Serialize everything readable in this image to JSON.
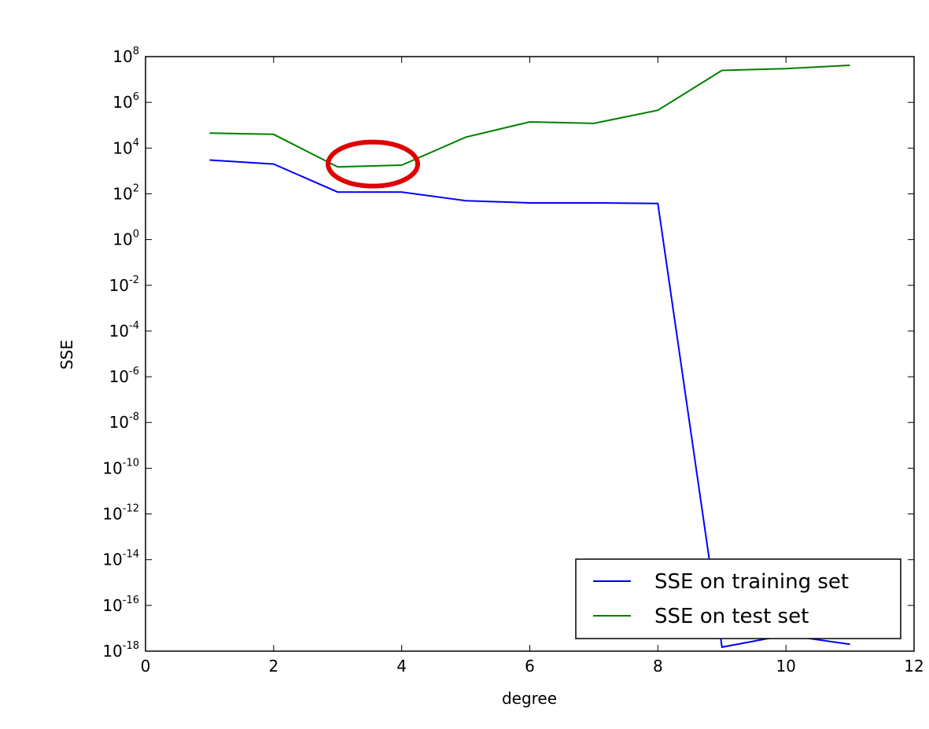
{
  "chart_data": {
    "type": "line",
    "title": "",
    "xlabel": "degree",
    "ylabel": "SSE",
    "xlim": [
      0,
      12
    ],
    "ylim": [
      1e-18,
      100000000.0
    ],
    "yscale": "log",
    "grid": false,
    "legend_position": "lower-right",
    "xticks": [
      "0",
      "2",
      "4",
      "6",
      "8",
      "10",
      "12"
    ],
    "yticks": [
      {
        "base": "10",
        "exp": "8"
      },
      {
        "base": "10",
        "exp": "6"
      },
      {
        "base": "10",
        "exp": "4"
      },
      {
        "base": "10",
        "exp": "2"
      },
      {
        "base": "10",
        "exp": "0"
      },
      {
        "base": "10",
        "exp": "-2"
      },
      {
        "base": "10",
        "exp": "-4"
      },
      {
        "base": "10",
        "exp": "-6"
      },
      {
        "base": "10",
        "exp": "-8"
      },
      {
        "base": "10",
        "exp": "-10"
      },
      {
        "base": "10",
        "exp": "-12"
      },
      {
        "base": "10",
        "exp": "-14"
      },
      {
        "base": "10",
        "exp": "-16"
      },
      {
        "base": "10",
        "exp": "-18"
      }
    ],
    "x": [
      1,
      2,
      3,
      4,
      5,
      6,
      7,
      8,
      9,
      10,
      11
    ],
    "series": [
      {
        "name": "SSE on training set",
        "color": "#0000ff",
        "values": [
          3000,
          2000,
          120,
          120,
          50,
          40,
          40,
          38,
          1.5e-18,
          5e-18,
          2e-18
        ]
      },
      {
        "name": "SSE on test set",
        "color": "#008000",
        "values": [
          45000,
          40000,
          1500,
          1800,
          30000,
          140000,
          120000,
          450000,
          25000000,
          30000000,
          42000000
        ]
      }
    ],
    "annotation": {
      "shape": "ellipse",
      "color": "#e00000",
      "x_center": 3.55,
      "y_center": 2000
    }
  }
}
